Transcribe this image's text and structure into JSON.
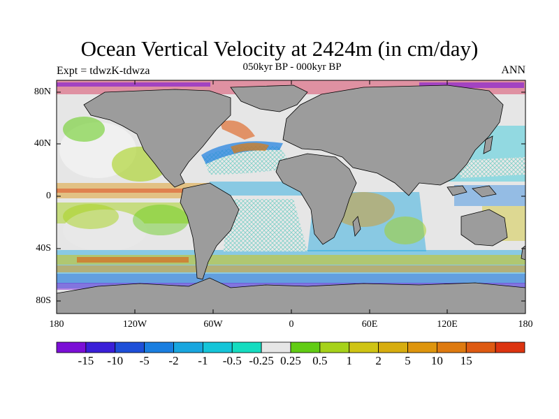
{
  "title": "Ocean Vertical Velocity at 2424m (in cm/day)",
  "left_label": "Expt = tdwzK-tdwza",
  "center_label": "050kyr BP - 000kyr BP",
  "right_label": "ANN",
  "lat_ticks": [
    "80N",
    "40N",
    "0",
    "40S",
    "80S"
  ],
  "lon_ticks": [
    "180",
    "120W",
    "60W",
    "0",
    "60E",
    "120E",
    "180"
  ],
  "colorbar": {
    "colors": [
      "#7b0fd6",
      "#3a1fd8",
      "#1e4fd8",
      "#1a7ee0",
      "#19a6df",
      "#15c5d9",
      "#15dcc0",
      "#e6e6e6",
      "#61cc14",
      "#a6d21a",
      "#cfc414",
      "#d7ad0f",
      "#de950d",
      "#de7a10",
      "#de5a12",
      "#dc3410"
    ],
    "labels": [
      "-15",
      "-10",
      "-5",
      "-2",
      "-1",
      "-0.5",
      "-0.25",
      "0.25",
      "0.5",
      "1",
      "2",
      "5",
      "10",
      "15"
    ]
  },
  "land_color": "#9c9c9c"
}
